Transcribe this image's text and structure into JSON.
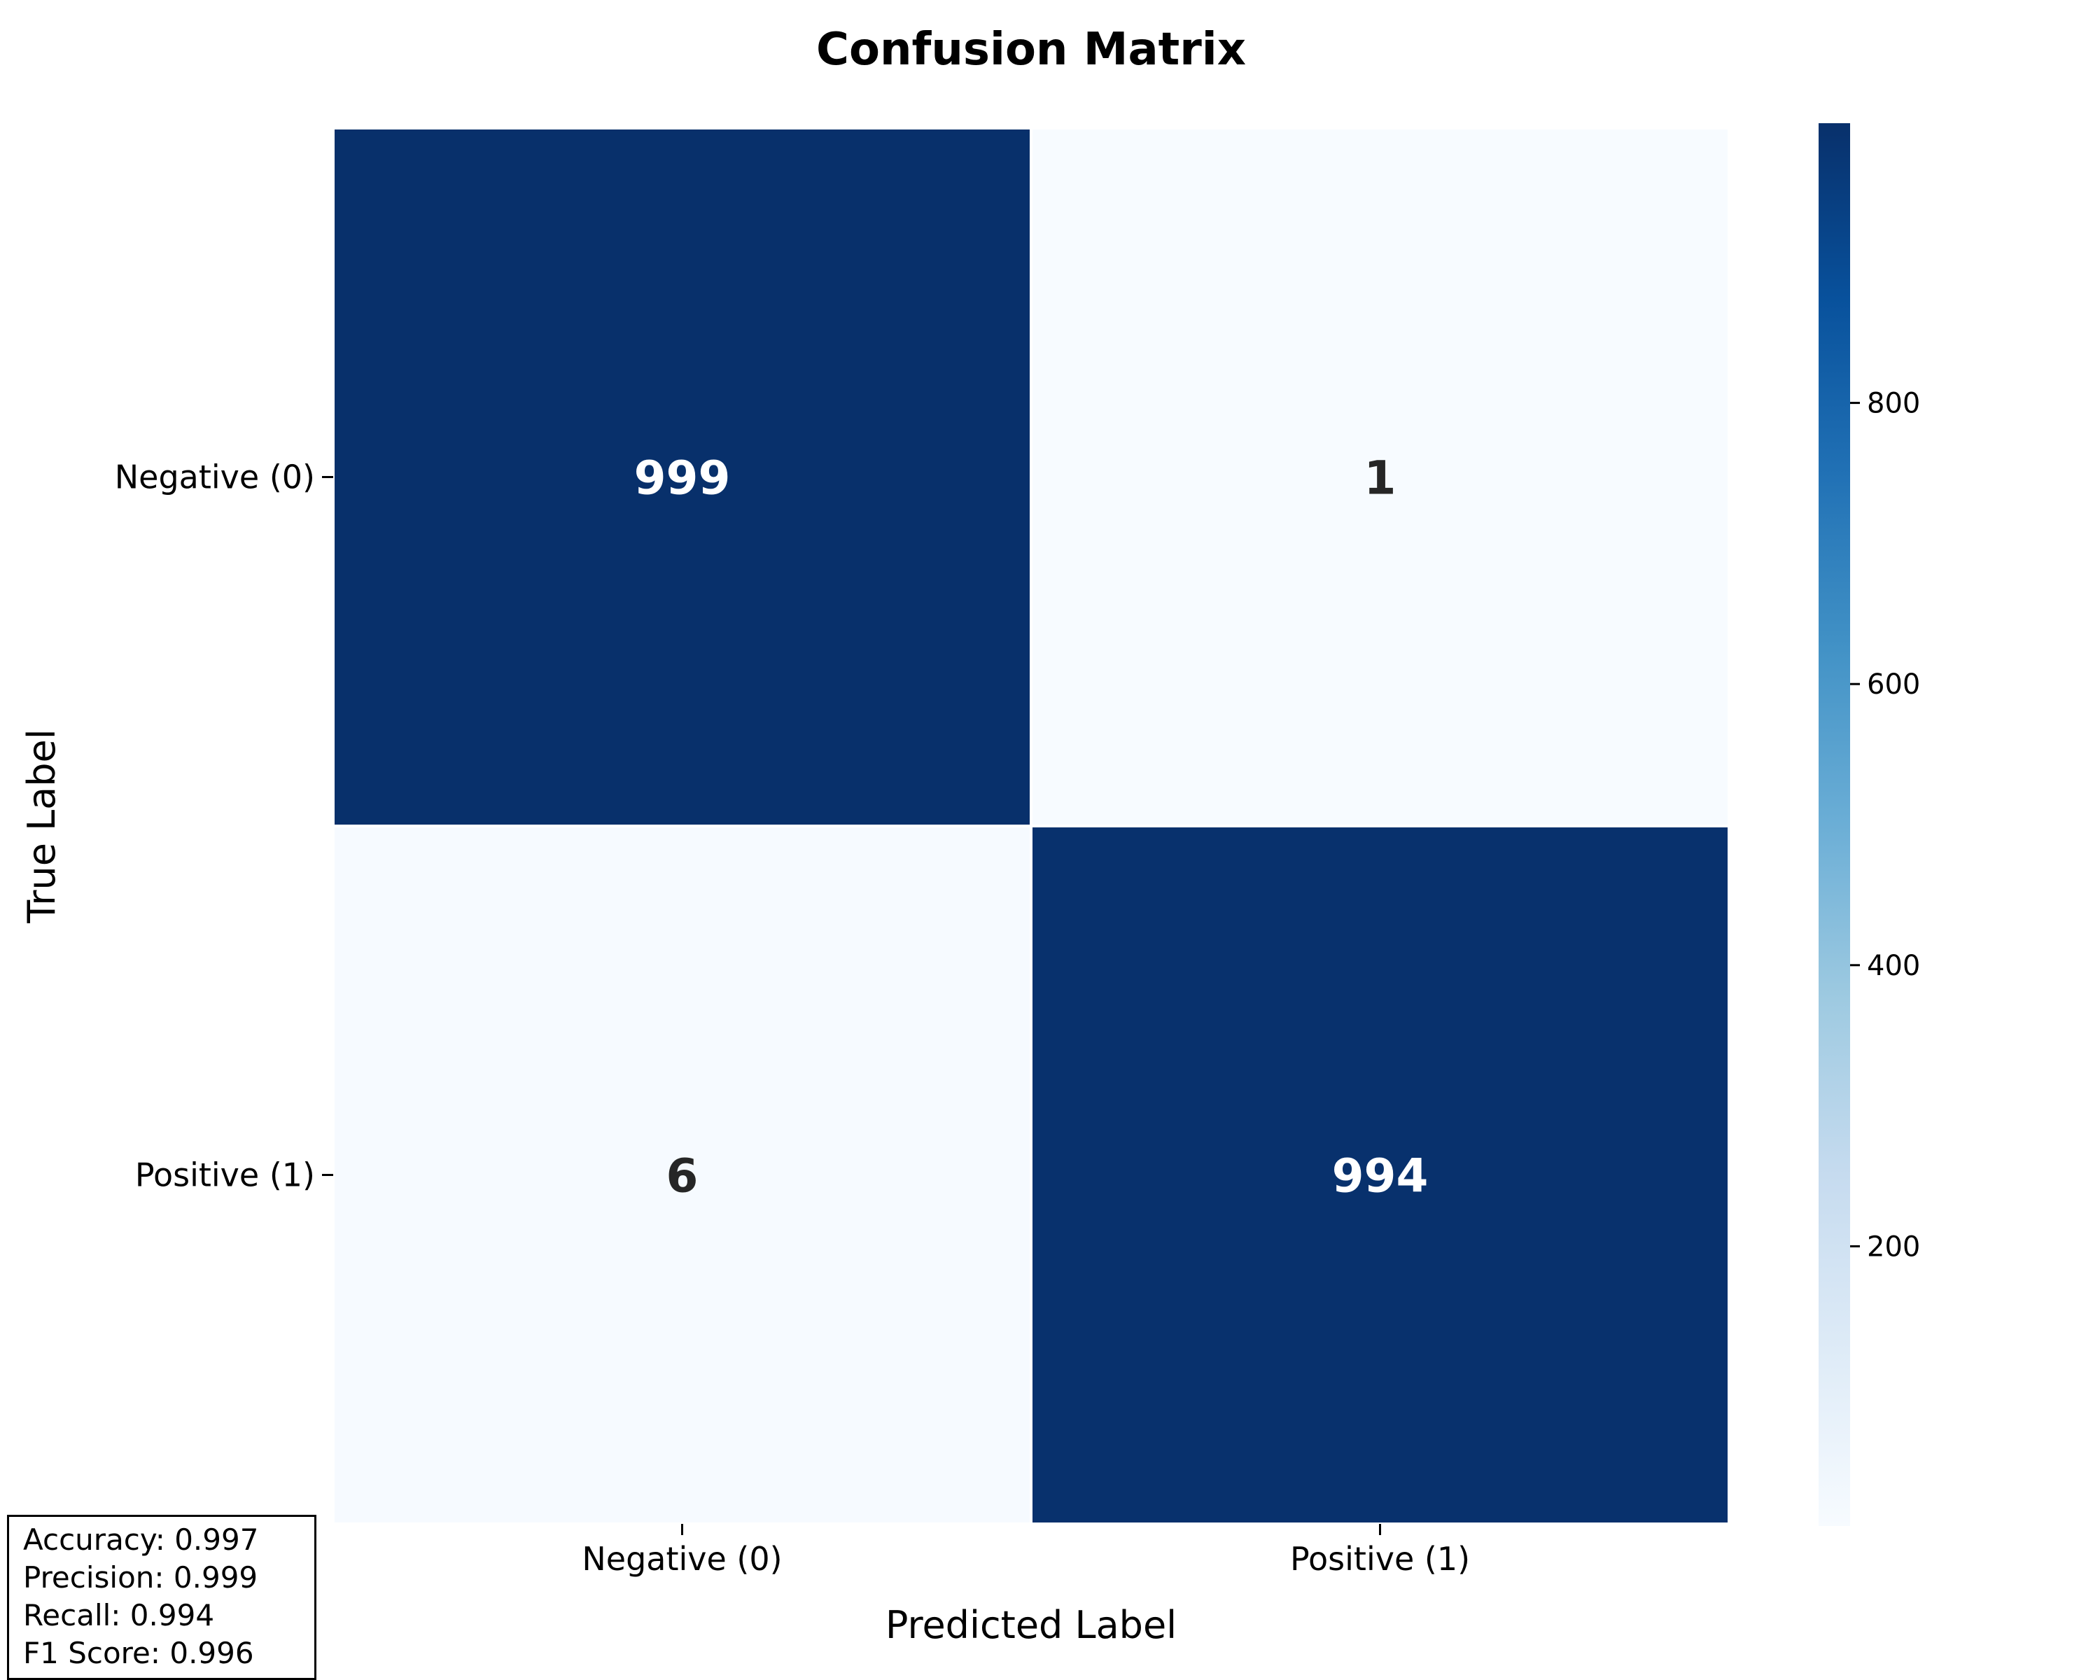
{
  "chart_data": {
    "type": "heatmap",
    "title": "Confusion Matrix",
    "xlabel": "Predicted Label",
    "ylabel": "True Label",
    "x_categories": [
      "Negative (0)",
      "Positive (1)"
    ],
    "y_categories": [
      "Negative (0)",
      "Positive (1)"
    ],
    "values": [
      [
        999,
        1
      ],
      [
        6,
        994
      ]
    ],
    "colormap": "Blues",
    "colorbar": {
      "range": [
        1,
        999
      ],
      "ticks": [
        200,
        400,
        600,
        800
      ]
    },
    "colors": {
      "high": "#08306b",
      "low": "#f7fbff",
      "text_on_dark": "#ffffff",
      "text_on_light": "#262626",
      "cell_border": "#ffffff"
    }
  },
  "metrics": {
    "accuracy": "Accuracy: 0.997",
    "precision": "Precision: 0.999",
    "recall": "Recall: 0.994",
    "f1": "F1 Score: 0.996"
  }
}
